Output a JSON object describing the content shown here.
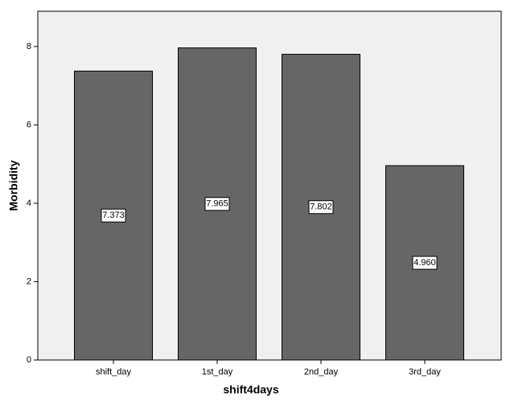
{
  "chart_data": {
    "type": "bar",
    "x_label": "shift4days",
    "y_label": "Morbidity",
    "categories": [
      "shift_day",
      "1st_day",
      "2nd_day",
      "3rd_day"
    ],
    "values": [
      7.373,
      7.965,
      7.802,
      4.96
    ],
    "value_labels": [
      "7.373",
      "7.965",
      "7.802",
      "4.960"
    ],
    "color": "#666666",
    "ylim": [
      0,
      8.9
    ],
    "yticks": [
      0,
      2,
      4,
      6,
      8
    ],
    "grid": false
  }
}
